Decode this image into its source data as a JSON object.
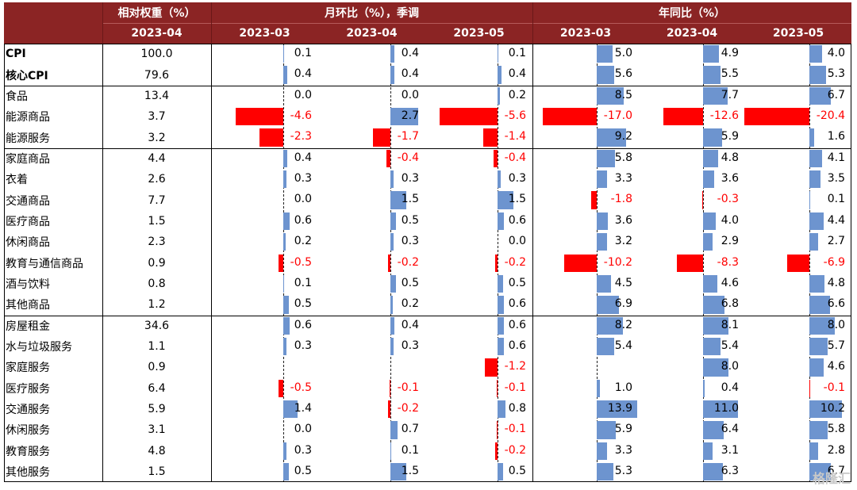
{
  "header": {
    "weight_title": "相对权重（%）",
    "mom_title": "月环比（%），季调",
    "yoy_title": "年同比（%）",
    "weight_date": "2023-04",
    "mom_dates": [
      "2023-03",
      "2023-04",
      "2023-05"
    ],
    "yoy_dates": [
      "2023-03",
      "2023-04",
      "2023-05"
    ]
  },
  "colors": {
    "header_bg": "#8b2424",
    "positive_bar": "#6d94cf",
    "negative_bar": "#ff0000",
    "negative_text": "#ff0000"
  },
  "watermark": "格隆汇",
  "chart_data": {
    "type": "table",
    "rows": [
      {
        "name": "CPI",
        "bold": true,
        "weight": "100.0",
        "mom": [
          "0.1",
          "0.4",
          "0.1"
        ],
        "yoy": [
          "5.0",
          "4.9",
          "4.0"
        ]
      },
      {
        "name": "核心CPI",
        "bold": true,
        "weight": "79.6",
        "mom": [
          "0.4",
          "0.4",
          "0.4"
        ],
        "yoy": [
          "5.6",
          "5.5",
          "5.3"
        ]
      },
      {
        "name": "食品",
        "weight": "13.4",
        "mom": [
          "0.0",
          "0.0",
          "0.2"
        ],
        "yoy": [
          "8.5",
          "7.7",
          "6.7"
        ]
      },
      {
        "name": "能源商品",
        "weight": "3.7",
        "mom": [
          "-4.6",
          "2.7",
          "-5.6"
        ],
        "yoy": [
          "-17.0",
          "-12.6",
          "-20.4"
        ]
      },
      {
        "name": "能源服务",
        "weight": "3.2",
        "mom": [
          "-2.3",
          "-1.7",
          "-1.4"
        ],
        "yoy": [
          "9.2",
          "5.9",
          "1.6"
        ]
      },
      {
        "name": "家庭商品",
        "weight": "4.4",
        "mom": [
          "0.4",
          "-0.4",
          "-0.4"
        ],
        "yoy": [
          "5.8",
          "4.8",
          "4.1"
        ]
      },
      {
        "name": "衣着",
        "weight": "2.6",
        "mom": [
          "0.3",
          "0.3",
          "0.3"
        ],
        "yoy": [
          "3.3",
          "3.6",
          "3.5"
        ]
      },
      {
        "name": "交通商品",
        "weight": "7.7",
        "mom": [
          "0.0",
          "1.5",
          "1.5"
        ],
        "yoy": [
          "-1.8",
          "-0.3",
          "0.1"
        ]
      },
      {
        "name": "医疗商品",
        "weight": "1.5",
        "mom": [
          "0.6",
          "0.5",
          "0.6"
        ],
        "yoy": [
          "3.6",
          "4.0",
          "4.4"
        ]
      },
      {
        "name": "休闲商品",
        "weight": "2.3",
        "mom": [
          "0.2",
          "0.3",
          "0.0"
        ],
        "yoy": [
          "3.2",
          "2.9",
          "2.7"
        ]
      },
      {
        "name": "教育与通信商品",
        "weight": "0.9",
        "mom": [
          "-0.5",
          "-0.2",
          "-0.2"
        ],
        "yoy": [
          "-10.2",
          "-8.3",
          "-6.9"
        ]
      },
      {
        "name": "酒与饮料",
        "weight": "0.8",
        "mom": [
          "0.1",
          "0.5",
          "0.5"
        ],
        "yoy": [
          "4.5",
          "4.6",
          "4.8"
        ]
      },
      {
        "name": "其他商品",
        "weight": "1.2",
        "mom": [
          "0.5",
          "0.2",
          "0.6"
        ],
        "yoy": [
          "6.9",
          "6.8",
          "6.6"
        ]
      },
      {
        "name": "房屋租金",
        "weight": "34.6",
        "mom": [
          "0.6",
          "0.4",
          "0.6"
        ],
        "yoy": [
          "8.2",
          "8.1",
          "8.0"
        ]
      },
      {
        "name": "水与垃圾服务",
        "weight": "1.1",
        "mom": [
          "0.3",
          "0.3",
          "0.6"
        ],
        "yoy": [
          "5.4",
          "5.4",
          "5.7"
        ]
      },
      {
        "name": "家庭服务",
        "weight": "0.9",
        "mom": [
          "",
          "",
          "-1.2"
        ],
        "yoy": [
          "",
          "8.0",
          "4.6"
        ]
      },
      {
        "name": "医疗服务",
        "weight": "6.4",
        "mom": [
          "-0.5",
          "-0.1",
          "-0.1"
        ],
        "yoy": [
          "1.0",
          "0.4",
          "-0.1"
        ]
      },
      {
        "name": "交通服务",
        "weight": "5.9",
        "mom": [
          "1.4",
          "-0.2",
          "0.8"
        ],
        "yoy": [
          "13.9",
          "11.0",
          "10.2"
        ]
      },
      {
        "name": "休闲服务",
        "weight": "3.1",
        "mom": [
          "0.0",
          "0.7",
          "-0.1"
        ],
        "yoy": [
          "5.9",
          "6.4",
          "5.8"
        ]
      },
      {
        "name": "教育服务",
        "weight": "4.8",
        "mom": [
          "0.3",
          "0.1",
          "-0.2"
        ],
        "yoy": [
          "3.3",
          "3.1",
          "2.8"
        ]
      },
      {
        "name": "其他服务",
        "weight": "1.5",
        "mom": [
          "0.5",
          "1.5",
          "0.5"
        ],
        "yoy": [
          "5.3",
          "6.3",
          "6.7"
        ]
      }
    ]
  }
}
